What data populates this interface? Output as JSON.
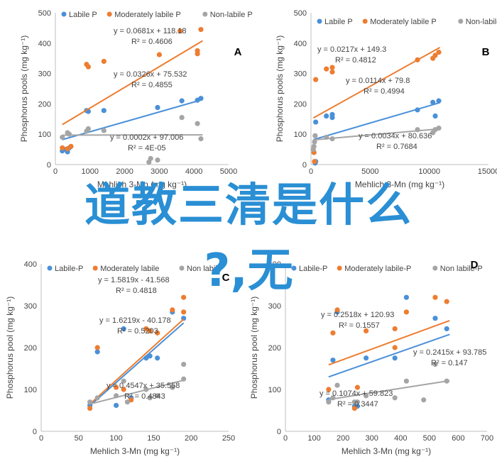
{
  "colors": {
    "labile": "#4a90d9",
    "moderate": "#ed7d31",
    "nonlabile": "#a5a5a5",
    "overlay": "#2a8fd4"
  },
  "overlay": {
    "line1": "道教三清是什么",
    "line2": "?,无"
  },
  "chart_data": [
    {
      "id": "A",
      "type": "scatter",
      "panel_label": "A",
      "ylabel": "Phosphorus pools (mg kg⁻¹)",
      "xlabel": "Mehlich 3-Mn (mg kg⁻¹)",
      "xlim": [
        0,
        5000
      ],
      "ylim": [
        0,
        500
      ],
      "xticks": [
        0,
        1000,
        2000,
        3000,
        4000,
        5000
      ],
      "yticks": [
        0,
        100,
        200,
        300,
        400,
        500
      ],
      "legend": [
        "Labile P",
        "Moderately labile P",
        "Non-labile P"
      ],
      "series": [
        {
          "name": "Labile P",
          "color": "labile",
          "points": [
            [
              200,
              45
            ],
            [
              300,
              50
            ],
            [
              350,
              42
            ],
            [
              400,
              55
            ],
            [
              900,
              178
            ],
            [
              950,
              175
            ],
            [
              1400,
              178
            ],
            [
              2950,
              188
            ],
            [
              3650,
              210
            ],
            [
              4100,
              212
            ],
            [
              4200,
              218
            ]
          ],
          "fit": {
            "slope": 0.0326,
            "intercept": 75.532,
            "x0": 200,
            "x1": 4250
          }
        },
        {
          "name": "Moderately labile P",
          "color": "moderate",
          "points": [
            [
              200,
              55
            ],
            [
              350,
              52
            ],
            [
              450,
              60
            ],
            [
              900,
              330
            ],
            [
              950,
              322
            ],
            [
              1400,
              340
            ],
            [
              3000,
              362
            ],
            [
              3600,
              440
            ],
            [
              4100,
              375
            ],
            [
              4100,
              365
            ],
            [
              4200,
              445
            ]
          ],
          "fit": {
            "slope": 0.0681,
            "intercept": 118.18,
            "x0": 200,
            "x1": 4250
          }
        },
        {
          "name": "Non-labile P",
          "color": "nonlabile",
          "points": [
            [
              200,
              90
            ],
            [
              350,
              105
            ],
            [
              400,
              100
            ],
            [
              900,
              110
            ],
            [
              950,
              118
            ],
            [
              1400,
              112
            ],
            [
              2700,
              8
            ],
            [
              2750,
              20
            ],
            [
              2950,
              15
            ],
            [
              3650,
              155
            ],
            [
              4100,
              135
            ],
            [
              4200,
              85
            ]
          ],
          "fit": {
            "slope": 0.0002,
            "intercept": 97.006,
            "x0": 200,
            "x1": 4250
          }
        }
      ],
      "equations": [
        {
          "text": "y = 0.0681x + 118.18",
          "r2": "R² = 0.4606"
        },
        {
          "text": "y = 0.0326x + 75.532",
          "r2": "R² = 0.4855"
        },
        {
          "text": "y = 0.0002x + 97.006",
          "r2": "R² = 4E-05"
        }
      ]
    },
    {
      "id": "B",
      "type": "scatter",
      "panel_label": "B",
      "ylabel": "Phosphorus pools (mg kg⁻¹)",
      "xlabel": "Mehlich 3-Mn (mg kg⁻¹)",
      "xlim": [
        0,
        15000
      ],
      "ylim": [
        0,
        500
      ],
      "xticks": [
        0,
        5000,
        10000,
        15000
      ],
      "yticks": [
        0,
        100,
        200,
        300,
        400,
        500
      ],
      "legend": [
        "Labile P",
        "Moderately labile P",
        "Non-labile P"
      ],
      "series": [
        {
          "name": "Labile P",
          "color": "labile",
          "points": [
            [
              250,
              40
            ],
            [
              350,
              5
            ],
            [
              400,
              10
            ],
            [
              400,
              140
            ],
            [
              1300,
              160
            ],
            [
              1800,
              155
            ],
            [
              1800,
              165
            ],
            [
              9000,
              180
            ],
            [
              10300,
              205
            ],
            [
              10500,
              160
            ],
            [
              10800,
              210
            ]
          ],
          "fit": {
            "slope": 0.0114,
            "intercept": 79.8,
            "x0": 200,
            "x1": 10900
          }
        },
        {
          "name": "Moderately labile P",
          "color": "moderate",
          "points": [
            [
              250,
              40
            ],
            [
              300,
              10
            ],
            [
              400,
              280
            ],
            [
              1300,
              315
            ],
            [
              1800,
              305
            ],
            [
              1800,
              320
            ],
            [
              9000,
              345
            ],
            [
              10300,
              350
            ],
            [
              10500,
              360
            ],
            [
              10800,
              370
            ]
          ],
          "fit": {
            "slope": 0.0217,
            "intercept": 149.3,
            "x0": 200,
            "x1": 10900
          }
        },
        {
          "name": "Non-labile P",
          "color": "nonlabile",
          "points": [
            [
              200,
              50
            ],
            [
              250,
              60
            ],
            [
              300,
              75
            ],
            [
              350,
              95
            ],
            [
              1300,
              90
            ],
            [
              1800,
              85
            ],
            [
              9000,
              115
            ],
            [
              10300,
              105
            ],
            [
              10500,
              115
            ],
            [
              10800,
              120
            ]
          ],
          "fit": {
            "slope": 0.0034,
            "intercept": 80.636,
            "x0": 200,
            "x1": 10900
          }
        }
      ],
      "equations": [
        {
          "text": "y = 0.0217x + 149.3",
          "r2": "R² = 0.4812"
        },
        {
          "text": "y = 0.0114x + 79.8",
          "r2": "R² = 0.4994"
        },
        {
          "text": "y = 0.0034x + 80.636",
          "r2": "R² = 0.7684"
        }
      ]
    },
    {
      "id": "C",
      "type": "scatter",
      "panel_label": "C",
      "ylabel": "Phosphorus pool (mg kg⁻¹)",
      "xlabel": "Mehlich 3-Mn (mg kg⁻¹)",
      "xlim": [
        0,
        250
      ],
      "ylim": [
        0,
        400
      ],
      "xticks": [
        0,
        50,
        100,
        150,
        200,
        250
      ],
      "yticks": [
        0,
        100,
        200,
        300,
        400
      ],
      "legend": [
        "Labile-P",
        "Moderately labile",
        "Non labile"
      ],
      "series": [
        {
          "name": "Labile-P",
          "color": "labile",
          "points": [
            [
              65,
              62
            ],
            [
              75,
              190
            ],
            [
              100,
              62
            ],
            [
              110,
              245
            ],
            [
              120,
              80
            ],
            [
              140,
              175
            ],
            [
              145,
              180
            ],
            [
              155,
              175
            ],
            [
              175,
              285
            ],
            [
              190,
              270
            ]
          ],
          "fit": {
            "slope": 1.5819,
            "intercept": -41.568,
            "x0": 65,
            "x1": 190
          }
        },
        {
          "name": "Moderately labile",
          "color": "moderate",
          "points": [
            [
              65,
              55
            ],
            [
              75,
              200
            ],
            [
              100,
              105
            ],
            [
              110,
              100
            ],
            [
              120,
              75
            ],
            [
              140,
              245
            ],
            [
              145,
              240
            ],
            [
              155,
              235
            ],
            [
              175,
              290
            ],
            [
              190,
              320
            ],
            [
              190,
              285
            ]
          ],
          "fit": {
            "slope": 1.6219,
            "intercept": -40.178,
            "x0": 65,
            "x1": 190
          }
        },
        {
          "name": "Non labile",
          "color": "nonlabile",
          "points": [
            [
              65,
              70
            ],
            [
              75,
              80
            ],
            [
              100,
              85
            ],
            [
              110,
              120
            ],
            [
              115,
              70
            ],
            [
              140,
              100
            ],
            [
              145,
              80
            ],
            [
              155,
              85
            ],
            [
              175,
              105
            ],
            [
              190,
              160
            ],
            [
              190,
              125
            ]
          ],
          "fit": {
            "slope": 0.4547,
            "intercept": 35.558,
            "x0": 65,
            "x1": 190
          }
        }
      ],
      "equations": [
        {
          "text": "y = 1.5819x - 41.568",
          "r2": "R² = 0.4818"
        },
        {
          "text": "y = 1.6219x - 40.178",
          "r2": "R² = 0.5203"
        },
        {
          "text": "y = 0.4547x + 35.558",
          "r2": "R² = 0.4843"
        }
      ]
    },
    {
      "id": "D",
      "type": "scatter",
      "panel_label": "D",
      "ylabel": "Phosphorus pool (mg kg⁻¹)",
      "xlabel": "Mehlich 3-Mn (mg kg⁻¹)",
      "xlim": [
        0,
        700
      ],
      "ylim": [
        0,
        400
      ],
      "xticks": [
        0,
        100,
        200,
        300,
        400,
        500,
        600,
        700
      ],
      "yticks": [
        0,
        100,
        200,
        300,
        400
      ],
      "legend": [
        "Labile-P",
        "Moderately labile-P",
        "Non labile-P"
      ],
      "series": [
        {
          "name": "Labile-P",
          "color": "labile",
          "points": [
            [
              150,
              75
            ],
            [
              165,
              170
            ],
            [
              180,
              285
            ],
            [
              240,
              60
            ],
            [
              250,
              60
            ],
            [
              280,
              175
            ],
            [
              380,
              175
            ],
            [
              420,
              320
            ],
            [
              520,
              270
            ],
            [
              560,
              245
            ]
          ],
          "fit": {
            "slope": 0.2415,
            "intercept": 93.785,
            "x0": 150,
            "x1": 570
          }
        },
        {
          "name": "Moderately labile-P",
          "color": "moderate",
          "points": [
            [
              150,
              100
            ],
            [
              165,
              235
            ],
            [
              180,
              290
            ],
            [
              240,
              55
            ],
            [
              250,
              105
            ],
            [
              280,
              240
            ],
            [
              380,
              245
            ],
            [
              380,
              200
            ],
            [
              420,
              285
            ],
            [
              520,
              320
            ],
            [
              560,
              310
            ]
          ],
          "fit": {
            "slope": 0.2518,
            "intercept": 120.93,
            "x0": 150,
            "x1": 570
          }
        },
        {
          "name": "Non labile-P",
          "color": "nonlabile",
          "points": [
            [
              150,
              70
            ],
            [
              165,
              80
            ],
            [
              180,
              110
            ],
            [
              240,
              70
            ],
            [
              250,
              70
            ],
            [
              280,
              85
            ],
            [
              380,
              80
            ],
            [
              420,
              120
            ],
            [
              480,
              75
            ],
            [
              520,
              160
            ],
            [
              560,
              120
            ]
          ],
          "fit": {
            "slope": 0.1074,
            "intercept": 59.823,
            "x0": 150,
            "x1": 570
          }
        }
      ],
      "equations": [
        {
          "text": "y = 0.2518x + 120.93",
          "r2": "R² = 0.1557"
        },
        {
          "text": "y = 0.2415x + 93.785",
          "r2": "R² = 0.147"
        },
        {
          "text": "y = 0.1074x + 59.823",
          "r2": "R² = 0.3447"
        }
      ]
    }
  ]
}
